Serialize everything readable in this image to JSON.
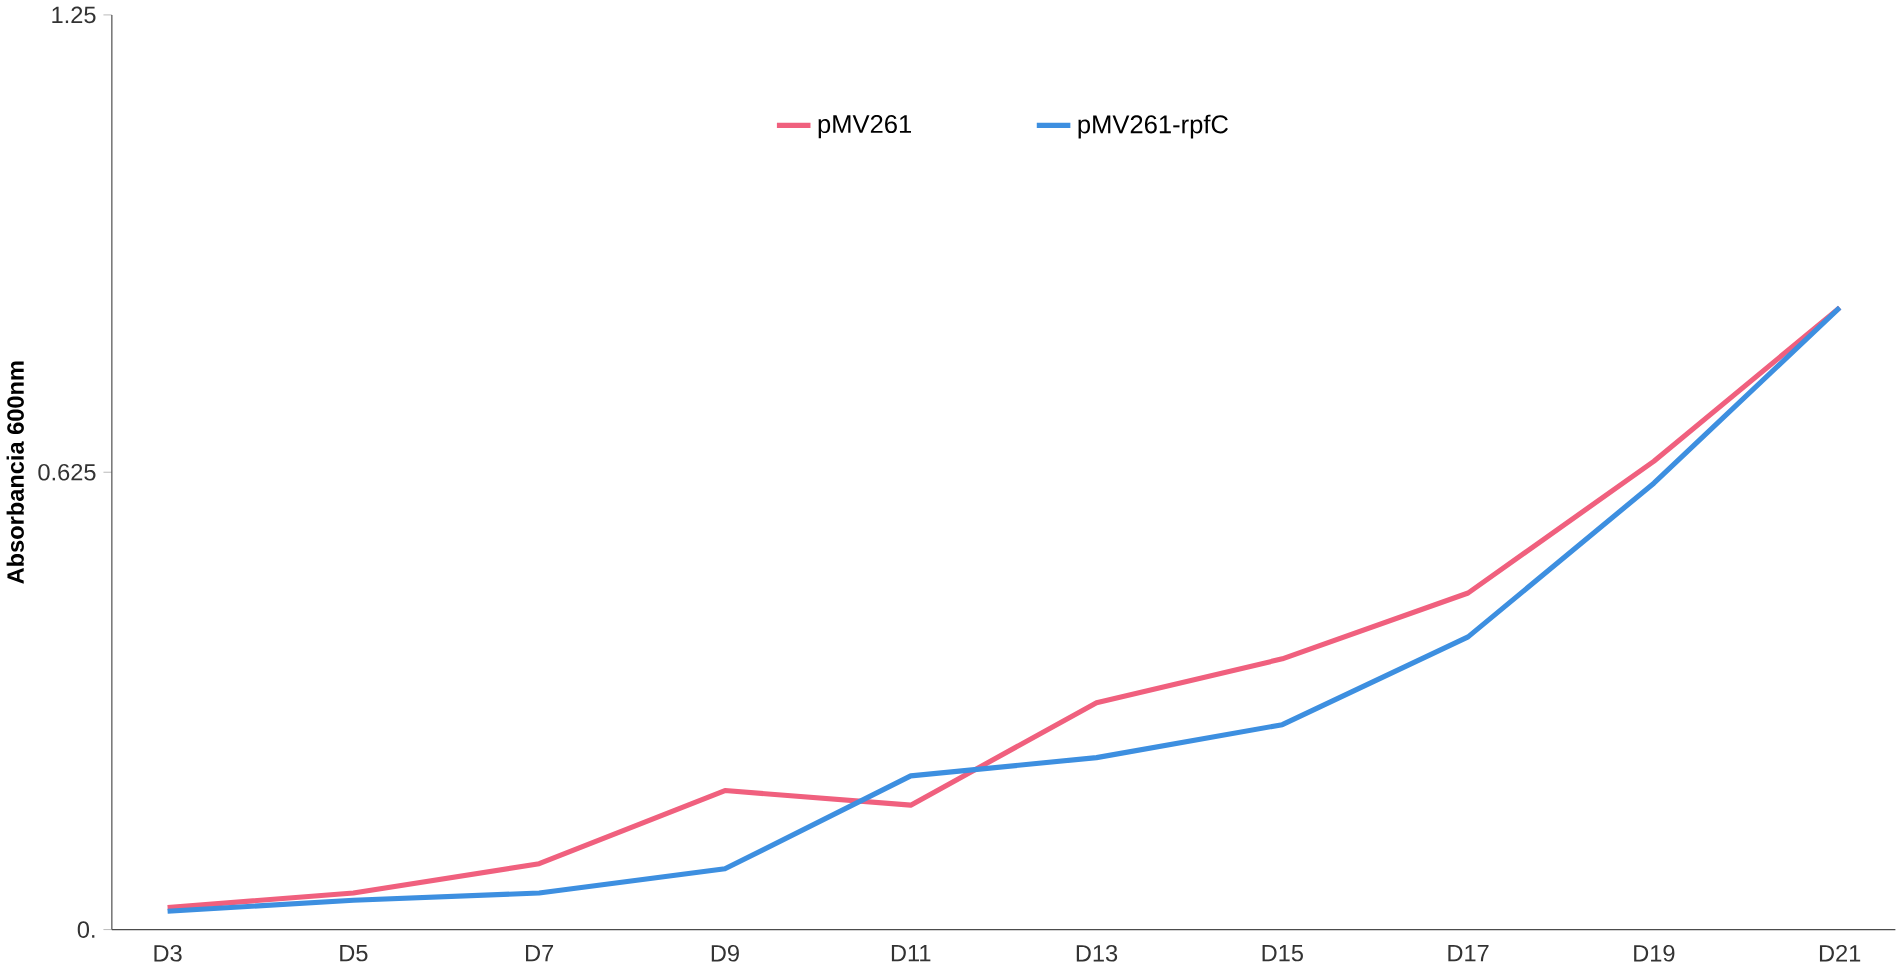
{
  "chart_data": {
    "type": "line",
    "ylabel": "Absorbancia  600nm",
    "categories": [
      "D3",
      "D5",
      "D7",
      "D9",
      "D11",
      "D13",
      "D15",
      "D17",
      "D19",
      "D21"
    ],
    "series": [
      {
        "name": "pMV261",
        "color": "#f0607e",
        "values": [
          0.03,
          0.05,
          0.09,
          0.19,
          0.17,
          0.31,
          0.37,
          0.46,
          0.64,
          0.85
        ]
      },
      {
        "name": "pMV261-rpfC",
        "color": "#3d8fe0",
        "values": [
          0.025,
          0.04,
          0.05,
          0.083,
          0.21,
          0.235,
          0.28,
          0.4,
          0.61,
          0.85
        ]
      }
    ],
    "ylim": [
      0,
      1.25
    ],
    "yticks": [
      {
        "value": 0,
        "label": "0."
      },
      0.625,
      1.25
    ],
    "grid": false,
    "legend": "top",
    "marker": "none",
    "line_style": "solid"
  }
}
